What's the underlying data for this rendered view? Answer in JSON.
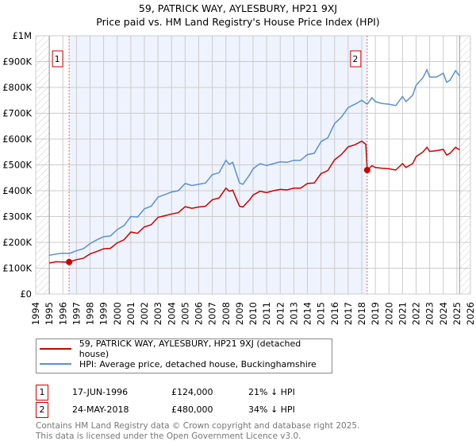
{
  "header": {
    "title": "59, PATRICK WAY, AYLESBURY, HP21 9XJ",
    "subtitle": "Price paid vs. HM Land Registry's House Price Index (HPI)"
  },
  "chart_data": {
    "type": "line",
    "title": "59, PATRICK WAY, AYLESBURY, HP21 9XJ",
    "subtitle": "Price paid vs. HM Land Registry's House Price Index (HPI)",
    "xlim": [
      1994,
      2026
    ],
    "ylim": [
      0,
      1000000
    ],
    "x_ticks": [
      "1994",
      "1995",
      "1996",
      "1997",
      "1998",
      "1999",
      "2000",
      "2001",
      "2002",
      "2003",
      "2004",
      "2005",
      "2006",
      "2007",
      "2008",
      "2009",
      "2010",
      "2011",
      "2012",
      "2013",
      "2014",
      "2015",
      "2016",
      "2017",
      "2018",
      "2019",
      "2020",
      "2021",
      "2022",
      "2023",
      "2024",
      "2025",
      "2026"
    ],
    "y_ticks": [
      {
        "v": 0,
        "label": "£0"
      },
      {
        "v": 100000,
        "label": "£100K"
      },
      {
        "v": 200000,
        "label": "£200K"
      },
      {
        "v": 300000,
        "label": "£300K"
      },
      {
        "v": 400000,
        "label": "£400K"
      },
      {
        "v": 500000,
        "label": "£500K"
      },
      {
        "v": 600000,
        "label": "£600K"
      },
      {
        "v": 700000,
        "label": "£700K"
      },
      {
        "v": 800000,
        "label": "£800K"
      },
      {
        "v": 900000,
        "label": "£900K"
      },
      {
        "v": 1000000,
        "label": "£1M"
      }
    ],
    "grid": true,
    "data_range": [
      1995,
      2025.2
    ],
    "series": [
      {
        "name": "59, PATRICK WAY, AYLESBURY, HP21 9XJ (detached house)",
        "color": "#cc0000",
        "x": [
          1995,
          1995.5,
          1996,
          1996.46,
          1997,
          1997.5,
          1998,
          1998.5,
          1999,
          1999.5,
          2000,
          2000.5,
          2001,
          2001.5,
          2002,
          2002.5,
          2003,
          2003.5,
          2004,
          2004.5,
          2005,
          2005.5,
          2006,
          2006.5,
          2007,
          2007.5,
          2008,
          2008.25,
          2008.5,
          2009,
          2009.25,
          2009.75,
          2010,
          2010.5,
          2011,
          2011.5,
          2012,
          2012.5,
          2013,
          2013.5,
          2014,
          2014.5,
          2015,
          2015.5,
          2016,
          2016.5,
          2017,
          2017.5,
          2018,
          2018.3,
          2018.4,
          2018.75,
          2019,
          2019.5,
          2020,
          2020.5,
          2021,
          2021.25,
          2021.75,
          2022,
          2022.5,
          2022.8,
          2023,
          2023.5,
          2024,
          2024.25,
          2024.5,
          2024.9,
          2025.2
        ],
        "y": [
          120,
          125,
          124,
          124,
          133,
          138,
          155,
          165,
          175,
          177,
          198,
          210,
          240,
          235,
          260,
          268,
          297,
          303,
          310,
          315,
          338,
          332,
          337,
          340,
          365,
          372,
          410,
          398,
          402,
          340,
          337,
          365,
          383,
          398,
          393,
          400,
          405,
          403,
          410,
          410,
          428,
          430,
          466,
          478,
          520,
          540,
          570,
          578,
          592,
          580,
          480,
          497,
          490,
          487,
          485,
          480,
          505,
          490,
          505,
          532,
          550,
          568,
          552,
          555,
          560,
          538,
          545,
          568,
          558
        ]
      },
      {
        "name": "HPI: Average price, detached house, Buckinghamshire",
        "color": "#5b8fd4",
        "x": [
          1995,
          1995.5,
          1996,
          1996.5,
          1997,
          1997.5,
          1998,
          1998.5,
          1999,
          1999.5,
          2000,
          2000.5,
          2001,
          2001.5,
          2002,
          2002.5,
          2003,
          2003.5,
          2004,
          2004.5,
          2005,
          2005.5,
          2006,
          2006.5,
          2007,
          2007.5,
          2008,
          2008.25,
          2008.5,
          2009,
          2009.25,
          2009.75,
          2010,
          2010.5,
          2011,
          2011.5,
          2012,
          2012.5,
          2013,
          2013.5,
          2014,
          2014.5,
          2015,
          2015.5,
          2016,
          2016.5,
          2017,
          2017.5,
          2018,
          2018.4,
          2018.75,
          2019,
          2019.5,
          2020,
          2020.5,
          2021,
          2021.25,
          2021.75,
          2022,
          2022.5,
          2022.8,
          2023,
          2023.5,
          2024,
          2024.25,
          2024.5,
          2024.9,
          2025.2
        ],
        "y": [
          150,
          155,
          158,
          157,
          168,
          175,
          195,
          210,
          222,
          225,
          250,
          265,
          300,
          298,
          330,
          340,
          375,
          385,
          395,
          400,
          428,
          420,
          425,
          430,
          462,
          470,
          518,
          502,
          510,
          430,
          425,
          462,
          485,
          505,
          498,
          505,
          512,
          510,
          518,
          518,
          540,
          545,
          590,
          605,
          660,
          685,
          722,
          735,
          750,
          735,
          760,
          745,
          738,
          735,
          730,
          765,
          745,
          770,
          808,
          838,
          868,
          840,
          840,
          855,
          820,
          828,
          865,
          845
        ]
      }
    ],
    "y_unit": "thousands GBP",
    "sales": [
      {
        "id": "1",
        "x": 1996.46,
        "y": 124
      },
      {
        "id": "2",
        "x": 2018.4,
        "y": 480
      }
    ],
    "legend_position": "bottom"
  },
  "table": [
    {
      "id": "1",
      "date": "17-JUN-1996",
      "price": "£124,000",
      "hpi": "21% ↓ HPI"
    },
    {
      "id": "2",
      "date": "24-MAY-2018",
      "price": "£480,000",
      "hpi": "34% ↓ HPI"
    }
  ],
  "footer": {
    "line1": "Contains HM Land Registry data © Crown copyright and database right 2025.",
    "line2": "This data is licensed under the Open Government Licence v3.0."
  }
}
